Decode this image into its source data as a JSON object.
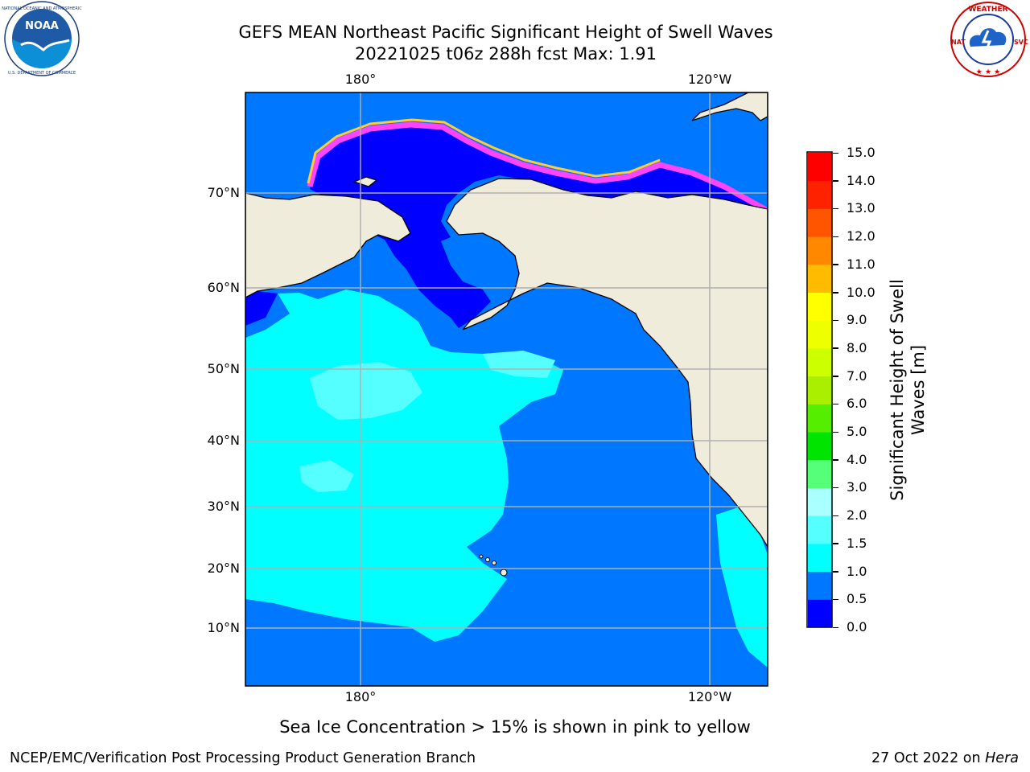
{
  "title": {
    "line1": "GEFS MEAN Northeast Pacific Significant Height of Swell Waves",
    "line2": "20221025 t06z 288h fcst   Max: 1.91"
  },
  "logos": {
    "left": {
      "name": "NOAA",
      "ring_text": "NATIONAL OCEANIC AND ATMOSPHERIC ADMINISTRATION · U.S. DEPARTMENT OF COMMERCE"
    },
    "right": {
      "name": "NATIONAL WEATHER SERVICE"
    }
  },
  "map": {
    "lat_labels": [
      "70°N",
      "60°N",
      "50°N",
      "40°N",
      "30°N",
      "20°N",
      "10°N"
    ],
    "lon_labels": [
      "180°",
      "120°W"
    ],
    "grid": true,
    "colors": {
      "land": "#efecdc",
      "coast": "#000000",
      "grid": "#b0b0b0",
      "ice": "#ff33ff"
    }
  },
  "colorbar": {
    "label": "Significant Height of Swell Waves [m]",
    "label_lines": [
      "Significant Height of Swell",
      "Waves [m]"
    ],
    "ticks": [
      "15.0",
      "14.0",
      "13.0",
      "12.0",
      "11.0",
      "10.0",
      "9.0",
      "8.0",
      "7.0",
      "6.0",
      "5.0",
      "4.0",
      "3.0",
      "2.0",
      "1.5",
      "1.0",
      "0.5",
      "0.0"
    ],
    "colors_bottom_to_top": [
      "#0000ff",
      "#0077ff",
      "#00ffff",
      "#55ffff",
      "#aaffff",
      "#55ff77",
      "#00e400",
      "#55ee00",
      "#aaee00",
      "#ccff00",
      "#eeff00",
      "#ffff00",
      "#ffbb00",
      "#ff8800",
      "#ff5500",
      "#ff2200",
      "#ff0000"
    ]
  },
  "note": "Sea Ice Concentration > 15% is shown in pink to yellow",
  "footer": {
    "left": "NCEP/EMC/Verification Post Processing Product Generation Branch",
    "right_prefix": "27 Oct 2022 on ",
    "right_machine": "Hera"
  }
}
